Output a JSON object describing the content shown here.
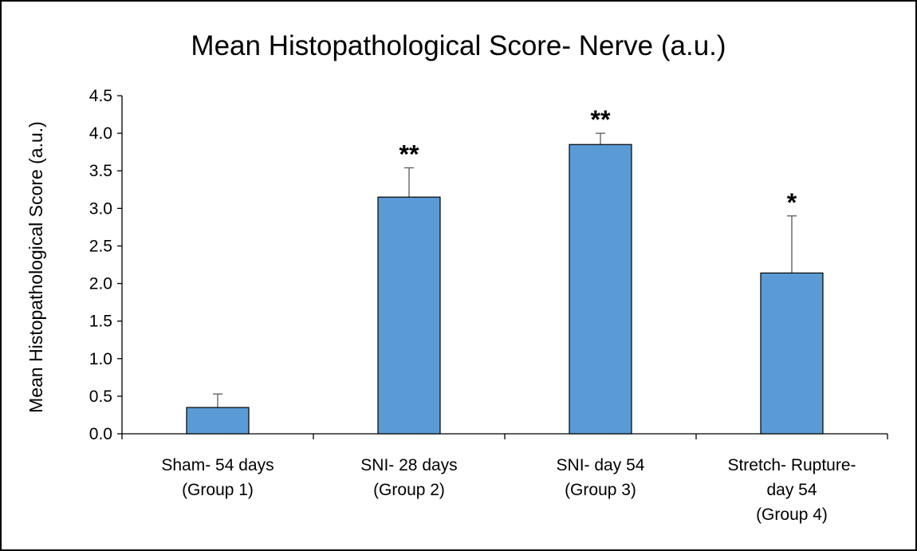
{
  "chart_data": {
    "type": "bar",
    "title": "Mean Histopathological Score- Nerve (a.u.)",
    "xlabel": "",
    "ylabel": "Mean Histopathological Score (a.u.)",
    "ylim": [
      0,
      4.5
    ],
    "yticks": [
      "0.0",
      "0.5",
      "1.0",
      "1.5",
      "2.0",
      "2.5",
      "3.0",
      "3.5",
      "4.0",
      "4.5"
    ],
    "categories": [
      [
        "Sham- 54 days",
        "(Group 1)"
      ],
      [
        "SNI- 28 days",
        "(Group 2)"
      ],
      [
        "SNI- day 54",
        "(Group 3)"
      ],
      [
        "Stretch- Rupture-",
        "day 54",
        "(Group 4)"
      ]
    ],
    "values": [
      0.35,
      3.15,
      3.85,
      2.14
    ],
    "error_upper": [
      0.53,
      3.54,
      4.0,
      2.9
    ],
    "significance": [
      "",
      "**",
      "**",
      "*"
    ],
    "grid": false,
    "legend": "none",
    "bar_color": "#5B9BD5",
    "bar_edge_color": "#000000"
  }
}
